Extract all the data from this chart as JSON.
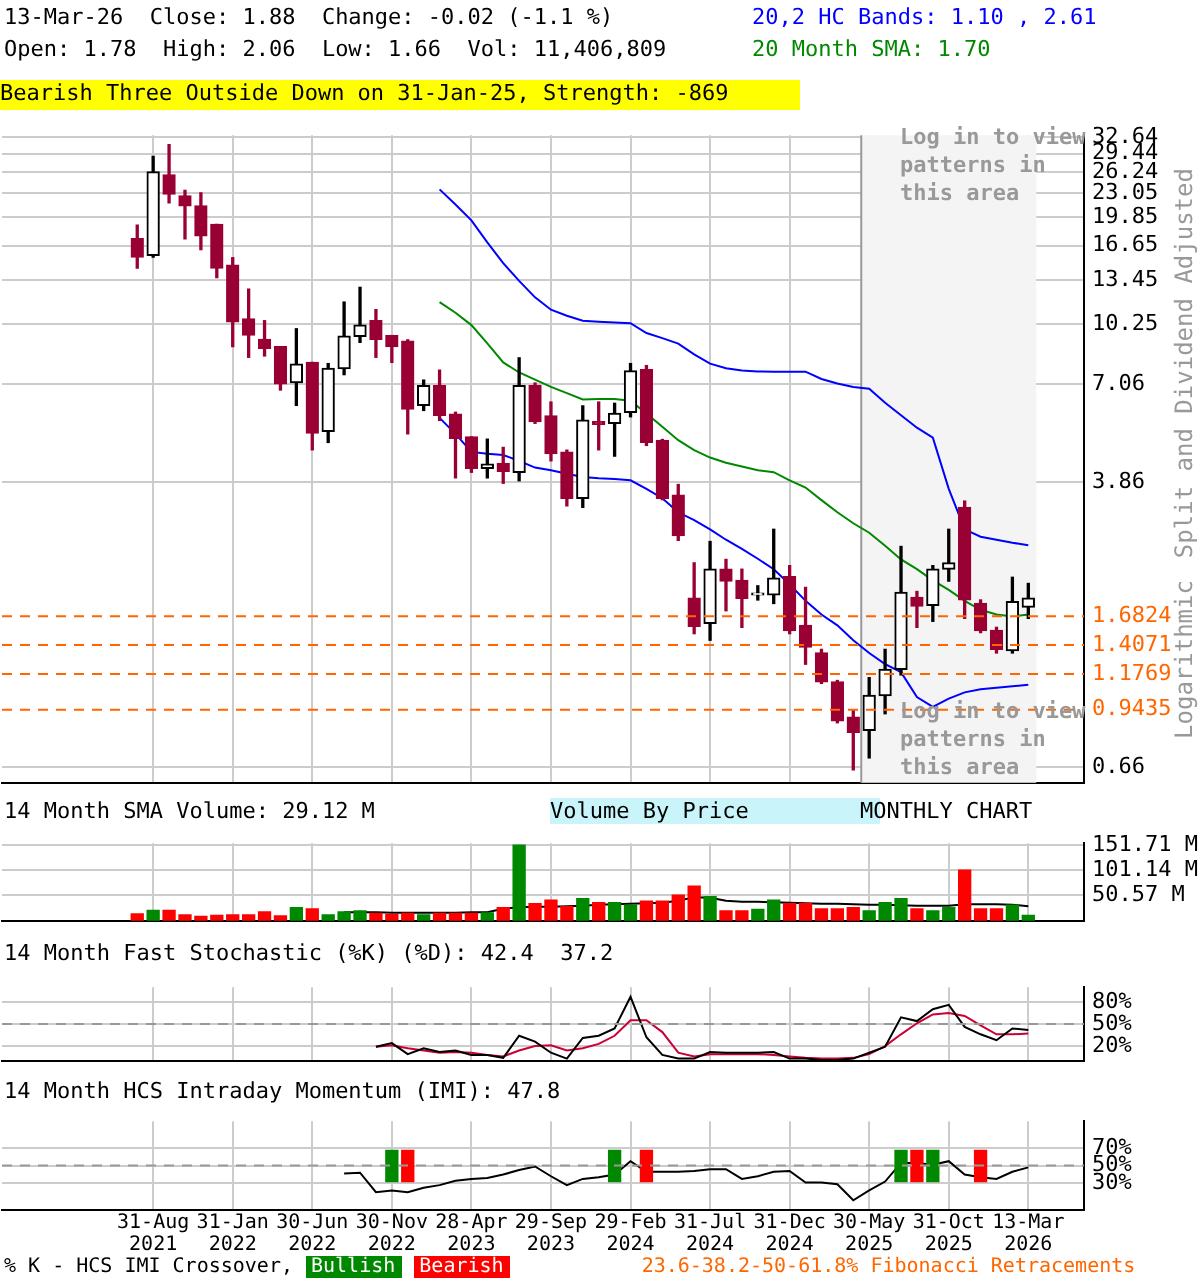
{
  "chart_data": [
    {
      "type": "candlestick",
      "subtitle": "Bearish Three Outside Down on 31-Jan-25, Strength: -869",
      "ylabel": "Split and Dividend Adjusted",
      "categories": [
        null,
        null,
        null,
        null,
        null,
        null,
        null,
        null,
        null,
        "31-Aug 2021",
        null,
        null,
        null,
        null,
        "31-Jan 2022",
        null,
        null,
        null,
        null,
        "30-Jun 2022",
        null,
        null,
        null,
        null,
        "30-Nov 2022",
        null,
        null,
        null,
        null,
        "28-Apr 2023",
        null,
        null,
        null,
        null,
        "29-Sep 2023",
        null,
        null,
        null,
        null,
        "29-Feb 2024",
        null,
        null,
        null,
        null,
        "31-Jul 2024",
        null,
        null,
        null,
        null,
        "31-Dec 2024",
        null,
        null,
        null,
        null,
        "30-May 2025",
        null,
        null,
        null,
        null,
        "31-Oct 2025",
        null,
        null,
        null,
        null,
        "13-Mar 2026",
        null,
        null,
        null
      ],
      "ohlc": [
        null,
        null,
        null,
        null,
        null,
        null,
        null,
        null,
        [
          17.4,
          18.92,
          14.5,
          15.52
        ],
        [
          15.69,
          28.93,
          15.52,
          26.3
        ],
        [
          25.8,
          31.11,
          21.72,
          22.91
        ],
        [
          22.67,
          23.45,
          17.37,
          21.31
        ],
        [
          21.31,
          23.1,
          16.26,
          17.71
        ],
        [
          19.01,
          19.01,
          13.67,
          14.5
        ],
        [
          14.77,
          15.46,
          8.92,
          10.39
        ],
        [
          10.59,
          12.73,
          8.35,
          9.58
        ],
        [
          9.33,
          10.47,
          8.42,
          8.82
        ],
        [
          8.92,
          8.92,
          6.82,
          7.08
        ],
        [
          7.14,
          9.96,
          6.2,
          8.0
        ],
        [
          8.09,
          8.09,
          4.71,
          5.22
        ],
        [
          5.28,
          8.03,
          4.93,
          7.79
        ],
        [
          7.79,
          11.75,
          7.5,
          9.51
        ],
        [
          9.51,
          12.87,
          9.16,
          10.19
        ],
        [
          10.47,
          11.21,
          8.35,
          9.33
        ],
        [
          9.55,
          9.55,
          8.09,
          8.92
        ],
        [
          9.23,
          9.3,
          5.2,
          6.06
        ],
        [
          6.2,
          7.25,
          6.01,
          7.01
        ],
        [
          7.01,
          7.71,
          5.65,
          5.83
        ],
        [
          5.87,
          5.94,
          3.96,
          5.06
        ],
        [
          5.1,
          5.1,
          4.1,
          4.2
        ],
        [
          4.2,
          5.03,
          3.96,
          4.31
        ],
        [
          4.33,
          4.78,
          3.83,
          4.12
        ],
        [
          4.1,
          8.32,
          3.89,
          7.01
        ],
        [
          7.01,
          7.12,
          5.55,
          5.61
        ],
        [
          5.81,
          6.33,
          4.4,
          4.6
        ],
        [
          4.64,
          4.7,
          3.33,
          3.49
        ],
        [
          3.49,
          6.18,
          3.3,
          5.66
        ],
        [
          5.61,
          6.33,
          4.71,
          5.51
        ],
        [
          5.55,
          6.28,
          4.53,
          5.9
        ],
        [
          5.94,
          8.03,
          5.78,
          7.67
        ],
        [
          7.74,
          7.93,
          4.84,
          4.93
        ],
        [
          4.99,
          5.02,
          3.46,
          3.49
        ],
        [
          3.56,
          3.8,
          2.69,
          2.77
        ],
        [
          1.88,
          2.34,
          1.51,
          1.58
        ],
        [
          1.61,
          2.67,
          1.45,
          2.25
        ],
        [
          2.25,
          2.39,
          1.74,
          2.09
        ],
        [
          2.1,
          2.25,
          1.57,
          1.88
        ],
        [
          1.92,
          2.03,
          1.86,
          1.94
        ],
        [
          1.92,
          2.88,
          1.82,
          2.13
        ],
        [
          2.15,
          2.3,
          1.51,
          1.54
        ],
        [
          1.59,
          2.01,
          1.25,
          1.39
        ],
        [
          1.34,
          1.37,
          1.11,
          1.12
        ],
        [
          1.12,
          1.13,
          0.87,
          0.88
        ],
        [
          0.9,
          0.94,
          0.65,
          0.82
        ],
        [
          0.83,
          1.15,
          0.7,
          1.03
        ],
        [
          1.03,
          1.37,
          0.92,
          1.21
        ],
        [
          1.21,
          2.59,
          1.17,
          1.95
        ],
        [
          1.89,
          1.96,
          1.57,
          1.79
        ],
        [
          1.8,
          2.3,
          1.63,
          2.25
        ],
        [
          2.25,
          2.88,
          2.09,
          2.34
        ],
        [
          3.3,
          3.43,
          1.66,
          1.86
        ],
        [
          1.82,
          1.86,
          1.52,
          1.54
        ],
        [
          1.54,
          1.57,
          1.34,
          1.37
        ],
        [
          1.36,
          2.14,
          1.34,
          1.84
        ],
        [
          1.78,
          2.06,
          1.66,
          1.88
        ],
        null,
        null,
        null
      ],
      "series": [
        {
          "type": "line",
          "color": "#0000ff",
          "values": [
            null,
            null,
            null,
            null,
            null,
            null,
            null,
            null,
            null,
            null,
            null,
            null,
            null,
            null,
            null,
            null,
            null,
            null,
            null,
            null,
            null,
            null,
            null,
            null,
            null,
            null,
            null,
            23.6,
            21.5,
            19.48,
            17.0,
            14.95,
            13.4,
            12.1,
            11.21,
            10.8,
            10.47,
            10.4,
            10.35,
            10.31,
            9.7,
            9.4,
            9.09,
            8.5,
            8.03,
            7.8,
            7.7,
            7.65,
            7.64,
            7.64,
            7.64,
            7.3,
            7.1,
            6.95,
            6.87,
            6.3,
            5.83,
            5.4,
            5.08,
            3.7,
            2.88,
            2.75,
            2.7,
            2.65,
            2.61,
            null,
            null,
            null
          ]
        },
        {
          "type": "line",
          "color": "#0000ff",
          "values": [
            null,
            null,
            null,
            null,
            null,
            null,
            null,
            null,
            null,
            null,
            null,
            null,
            null,
            null,
            null,
            null,
            null,
            null,
            null,
            null,
            null,
            null,
            null,
            null,
            null,
            null,
            null,
            5.74,
            5.2,
            4.65,
            4.6,
            4.56,
            4.4,
            4.22,
            4.15,
            4.06,
            3.98,
            3.95,
            3.93,
            3.9,
            3.7,
            3.49,
            3.2,
            3.05,
            2.88,
            2.7,
            2.55,
            2.4,
            2.25,
            2.05,
            1.85,
            1.7,
            1.59,
            1.45,
            1.34,
            1.25,
            1.19,
            1.02,
            0.96,
            1.01,
            1.05,
            1.07,
            1.08,
            1.09,
            1.1,
            null,
            null,
            null
          ]
        },
        {
          "type": "line",
          "color": "#008800",
          "values": [
            null,
            null,
            null,
            null,
            null,
            null,
            null,
            null,
            null,
            null,
            null,
            null,
            null,
            null,
            null,
            null,
            null,
            null,
            null,
            null,
            null,
            null,
            null,
            null,
            null,
            null,
            null,
            11.75,
            11.0,
            10.19,
            9.1,
            8.09,
            7.6,
            7.27,
            6.95,
            6.69,
            6.43,
            6.45,
            6.45,
            6.38,
            5.9,
            5.43,
            5.0,
            4.7,
            4.49,
            4.35,
            4.25,
            4.15,
            4.1,
            3.9,
            3.73,
            3.45,
            3.2,
            2.99,
            2.82,
            2.6,
            2.39,
            2.25,
            2.1,
            1.98,
            1.85,
            1.75,
            1.7,
            1.68,
            1.7,
            null,
            null,
            null
          ]
        }
      ],
      "log": true,
      "ylim": [
        0.64,
        33
      ],
      "yticks": [
        0.66,
        3.86,
        7.06,
        10.25,
        13.45,
        16.65,
        19.85,
        23.05,
        26.24,
        29.44,
        32.64
      ],
      "grid": true,
      "tick_labels": "y",
      "ref_lines": [
        {
          "axis": "y",
          "value": 1.6824,
          "label": "1.6824",
          "color": "#ff6600",
          "line_style": "dashed"
        },
        {
          "axis": "y",
          "value": 1.4071,
          "label": "1.4071",
          "color": "#ff6600",
          "line_style": "dashed"
        },
        {
          "axis": "y",
          "value": 1.1769,
          "label": "1.1769",
          "color": "#ff6600",
          "line_style": "dashed"
        },
        {
          "axis": "y",
          "value": 0.9435,
          "label": "0.9435",
          "color": "#ff6600",
          "line_style": "dashed"
        }
      ],
      "bands": [
        {
          "axis": "x",
          "from": "30-May 2025",
          "to": "13-Mar 2026",
          "color": "#f4f4f4"
        }
      ],
      "annotations": [
        "13-Mar-26  Close: 1.88  Change: -0.02 (-1.1 %)",
        "Open: 1.78  High: 2.06  Low: 1.66  Vol: 11,406,809",
        "20,2 HC Bands: 1.10 , 2.61",
        "20 Month SMA: 1.70",
        "Logarithmic",
        "Log in to view patterns in this area",
        "Log in to view patterns in this area",
        "Volume By Price",
        "MONTHLY CHART"
      ]
    },
    {
      "type": "bar",
      "title": "14 Month SMA Volume: 29.12 M",
      "categories": [
        null,
        null,
        null,
        null,
        null,
        null,
        null,
        null,
        null,
        "31-Aug 2021",
        null,
        null,
        null,
        null,
        "31-Jan 2022",
        null,
        null,
        null,
        null,
        "30-Jun 2022",
        null,
        null,
        null,
        null,
        "30-Nov 2022",
        null,
        null,
        null,
        null,
        "28-Apr 2023",
        null,
        null,
        null,
        null,
        "29-Sep 2023",
        null,
        null,
        null,
        null,
        "29-Feb 2024",
        null,
        null,
        null,
        null,
        "31-Jul 2024",
        null,
        null,
        null,
        null,
        "31-Dec 2024",
        null,
        null,
        null,
        null,
        "30-May 2025",
        null,
        null,
        null,
        null,
        "31-Oct 2025",
        null,
        null,
        null,
        null,
        "13-Mar 2026",
        null,
        null,
        null
      ],
      "series": [
        {
          "type": "bar",
          "values": [
            null,
            null,
            null,
            null,
            null,
            null,
            null,
            null,
            14,
            21,
            21,
            12,
            9,
            11,
            12,
            12,
            18,
            10,
            26,
            24,
            12,
            18,
            20,
            15,
            13,
            15,
            12,
            15,
            15,
            15,
            16,
            26,
            151,
            34,
            41,
            28,
            44,
            36,
            36,
            31,
            39,
            39,
            51,
            69,
            48,
            20,
            20,
            23,
            41,
            34,
            34,
            24,
            24,
            26,
            20,
            36,
            44,
            24,
            20,
            26,
            101,
            24,
            24,
            31,
            11,
            null,
            null,
            null
          ],
          "colors": [
            null,
            null,
            null,
            null,
            null,
            null,
            null,
            null,
            "#ff0000",
            "#008800",
            "#ff0000",
            "#ff0000",
            "#ff0000",
            "#ff0000",
            "#ff0000",
            "#ff0000",
            "#ff0000",
            "#ff0000",
            "#008800",
            "#ff0000",
            "#008800",
            "#008800",
            "#008800",
            "#ff0000",
            "#ff0000",
            "#ff0000",
            "#008800",
            "#ff0000",
            "#ff0000",
            "#ff0000",
            "#008800",
            "#ff0000",
            "#008800",
            "#ff0000",
            "#ff0000",
            "#ff0000",
            "#008800",
            "#ff0000",
            "#008800",
            "#008800",
            "#ff0000",
            "#ff0000",
            "#ff0000",
            "#ff0000",
            "#008800",
            "#ff0000",
            "#ff0000",
            "#008800",
            "#008800",
            "#ff0000",
            "#ff0000",
            "#ff0000",
            "#ff0000",
            "#ff0000",
            "#008800",
            "#008800",
            "#008800",
            "#ff0000",
            "#008800",
            "#008800",
            "#ff0000",
            "#ff0000",
            "#ff0000",
            "#008800",
            "#008800",
            null,
            null,
            null
          ]
        },
        {
          "type": "line",
          "color": "#000000",
          "values": [
            null,
            null,
            null,
            null,
            null,
            null,
            null,
            null,
            null,
            null,
            null,
            null,
            null,
            null,
            null,
            null,
            null,
            null,
            null,
            null,
            null,
            17,
            17,
            17,
            16,
            16,
            16,
            16,
            16,
            17,
            17,
            24,
            27,
            28,
            28,
            29,
            30,
            32,
            33,
            34,
            35,
            36,
            40,
            47,
            46,
            40,
            38,
            38,
            37,
            36,
            35,
            34,
            34,
            33,
            32,
            32,
            31,
            30,
            30,
            30,
            33,
            33,
            33,
            32,
            29,
            null,
            null,
            null
          ]
        }
      ],
      "ylim": [
        0,
        155
      ],
      "yticks": [
        {
          "value": 50.57,
          "label": "50.57 M"
        },
        {
          "value": 101.14,
          "label": "101.14 M"
        },
        {
          "value": 151.71,
          "label": "151.71 M"
        }
      ],
      "grid": true,
      "tick_labels": "y"
    },
    {
      "type": "line",
      "title": "14 Month Fast Stochastic (%K) (%D): 42.4  37.2",
      "categories": [
        null,
        null,
        null,
        null,
        null,
        null,
        null,
        null,
        null,
        "31-Aug 2021",
        null,
        null,
        null,
        null,
        "31-Jan 2022",
        null,
        null,
        null,
        null,
        "30-Jun 2022",
        null,
        null,
        null,
        null,
        "30-Nov 2022",
        null,
        null,
        null,
        null,
        "28-Apr 2023",
        null,
        null,
        null,
        null,
        "29-Sep 2023",
        null,
        null,
        null,
        null,
        "29-Feb 2024",
        null,
        null,
        null,
        null,
        "31-Jul 2024",
        null,
        null,
        null,
        null,
        "31-Dec 2024",
        null,
        null,
        null,
        null,
        "30-May 2025",
        null,
        null,
        null,
        null,
        "31-Oct 2025",
        null,
        null,
        null,
        null,
        "13-Mar 2026",
        null,
        null,
        null
      ],
      "series": [
        {
          "color": "#000000",
          "values": [
            null,
            null,
            null,
            null,
            null,
            null,
            null,
            null,
            null,
            null,
            null,
            null,
            null,
            null,
            null,
            null,
            null,
            null,
            null,
            null,
            null,
            null,
            null,
            19,
            24,
            9,
            17,
            12,
            14,
            8,
            8,
            4,
            34,
            26,
            11,
            3,
            31,
            34,
            44,
            87,
            32,
            8,
            3,
            3,
            12,
            11,
            11,
            11,
            12,
            3,
            3,
            1,
            1,
            3,
            11,
            19,
            59,
            54,
            70,
            76,
            46,
            36,
            28,
            44,
            42,
            null,
            null,
            null
          ]
        },
        {
          "color": "#cc0033",
          "values": [
            null,
            null,
            null,
            null,
            null,
            null,
            null,
            null,
            null,
            null,
            null,
            null,
            null,
            null,
            null,
            null,
            null,
            null,
            null,
            null,
            null,
            null,
            null,
            19,
            21,
            17,
            14,
            11,
            12,
            11,
            8,
            6,
            14,
            20,
            21,
            14,
            17,
            23,
            34,
            55,
            55,
            39,
            11,
            6,
            9,
            9,
            9,
            9,
            8,
            6,
            4,
            3,
            3,
            4,
            9,
            20,
            36,
            51,
            63,
            65,
            61,
            48,
            36,
            36,
            37,
            null,
            null,
            null
          ]
        }
      ],
      "ylim": [
        0,
        100
      ],
      "yticks": [
        {
          "value": 20,
          "label": "20%"
        },
        {
          "value": 50,
          "label": "50%"
        },
        {
          "value": 80,
          "label": "80%"
        }
      ],
      "grid": true,
      "tick_labels": "y",
      "ref_lines": [
        {
          "axis": "y",
          "value": 50,
          "color": "#999999",
          "line_style": "dashed"
        }
      ]
    },
    {
      "type": "line",
      "title": "14 Month HCS Intraday Momentum (IMI): 47.8",
      "categories": [
        null,
        null,
        null,
        null,
        null,
        null,
        null,
        null,
        null,
        "31-Aug 2021",
        null,
        null,
        null,
        null,
        "31-Jan 2022",
        null,
        null,
        null,
        null,
        "30-Jun 2022",
        null,
        null,
        null,
        null,
        "30-Nov 2022",
        null,
        null,
        null,
        null,
        "28-Apr 2023",
        null,
        null,
        null,
        null,
        "29-Sep 2023",
        null,
        null,
        null,
        null,
        "29-Feb 2024",
        null,
        null,
        null,
        null,
        "31-Jul 2024",
        null,
        null,
        null,
        null,
        "31-Dec 2024",
        null,
        null,
        null,
        null,
        "30-May 2025",
        null,
        null,
        null,
        null,
        "31-Oct 2025",
        null,
        null,
        null,
        null,
        "13-Mar 2026",
        null,
        null,
        null
      ],
      "series": [
        {
          "type": "bar",
          "name": "Bullish",
          "color": "#008800",
          "values": [
            null,
            null,
            null,
            null,
            null,
            null,
            null,
            null,
            null,
            null,
            null,
            null,
            null,
            null,
            null,
            null,
            null,
            null,
            null,
            null,
            null,
            null,
            null,
            null,
            35,
            null,
            null,
            null,
            null,
            null,
            null,
            null,
            null,
            null,
            null,
            null,
            null,
            null,
            35,
            null,
            null,
            null,
            null,
            null,
            null,
            null,
            null,
            null,
            null,
            null,
            null,
            null,
            null,
            null,
            null,
            null,
            35,
            null,
            35,
            null,
            null,
            null,
            null,
            null,
            null,
            null,
            null,
            null
          ],
          "base": [
            null,
            null,
            null,
            null,
            null,
            null,
            null,
            null,
            null,
            null,
            null,
            null,
            null,
            null,
            null,
            null,
            null,
            null,
            null,
            null,
            null,
            null,
            null,
            null,
            32,
            null,
            null,
            null,
            null,
            null,
            null,
            null,
            null,
            null,
            null,
            null,
            null,
            null,
            32,
            null,
            null,
            null,
            null,
            null,
            null,
            null,
            null,
            null,
            null,
            null,
            null,
            null,
            null,
            null,
            null,
            null,
            32,
            null,
            32,
            null,
            null,
            null,
            null,
            null,
            null,
            null,
            null,
            null
          ]
        },
        {
          "type": "bar",
          "name": "Bearish",
          "color": "#ff0000",
          "values": [
            null,
            null,
            null,
            null,
            null,
            null,
            null,
            null,
            null,
            null,
            null,
            null,
            null,
            null,
            null,
            null,
            null,
            null,
            null,
            null,
            null,
            null,
            null,
            null,
            null,
            35,
            null,
            null,
            null,
            null,
            null,
            null,
            null,
            null,
            null,
            null,
            null,
            null,
            null,
            null,
            35,
            null,
            null,
            null,
            null,
            null,
            null,
            null,
            null,
            null,
            null,
            null,
            null,
            null,
            null,
            null,
            null,
            35,
            null,
            null,
            null,
            35,
            null,
            null,
            null,
            null,
            null,
            null
          ],
          "base": [
            null,
            null,
            null,
            null,
            null,
            null,
            null,
            null,
            null,
            null,
            null,
            null,
            null,
            null,
            null,
            null,
            null,
            null,
            null,
            null,
            null,
            null,
            null,
            null,
            null,
            32,
            null,
            null,
            null,
            null,
            null,
            null,
            null,
            null,
            null,
            null,
            null,
            null,
            null,
            null,
            32,
            null,
            null,
            null,
            null,
            null,
            null,
            null,
            null,
            null,
            null,
            null,
            null,
            null,
            null,
            null,
            null,
            32,
            null,
            null,
            null,
            32,
            null,
            null,
            null,
            null,
            null,
            null
          ]
        },
        {
          "type": "line",
          "color": "#000000",
          "values": [
            null,
            null,
            null,
            null,
            null,
            null,
            null,
            null,
            null,
            null,
            null,
            null,
            null,
            null,
            null,
            null,
            null,
            null,
            null,
            null,
            null,
            41,
            42,
            20,
            22,
            20,
            25,
            28,
            33,
            35,
            36,
            40,
            45,
            49,
            38,
            28,
            35,
            37,
            40,
            55,
            43,
            43,
            43,
            44,
            46,
            46,
            35,
            38,
            43,
            44,
            31,
            31,
            29,
            11,
            22,
            32,
            53,
            53,
            51,
            55,
            40,
            37,
            35,
            43,
            48,
            null,
            null,
            null
          ]
        }
      ],
      "ylim": [
        0,
        100
      ],
      "yticks": [
        {
          "value": 30,
          "label": "30%"
        },
        {
          "value": 50,
          "label": "50%"
        },
        {
          "value": 70,
          "label": "70%"
        }
      ],
      "grid": true,
      "legend": "bottom",
      "ref_lines": [
        {
          "axis": "y",
          "value": 50,
          "color": "#999999",
          "line_style": "dashed"
        }
      ],
      "annotations": [
        "% K - HCS IMI Crossover,",
        "23.6-38.2-50-61.8% Fibonacci Retracements"
      ]
    }
  ]
}
